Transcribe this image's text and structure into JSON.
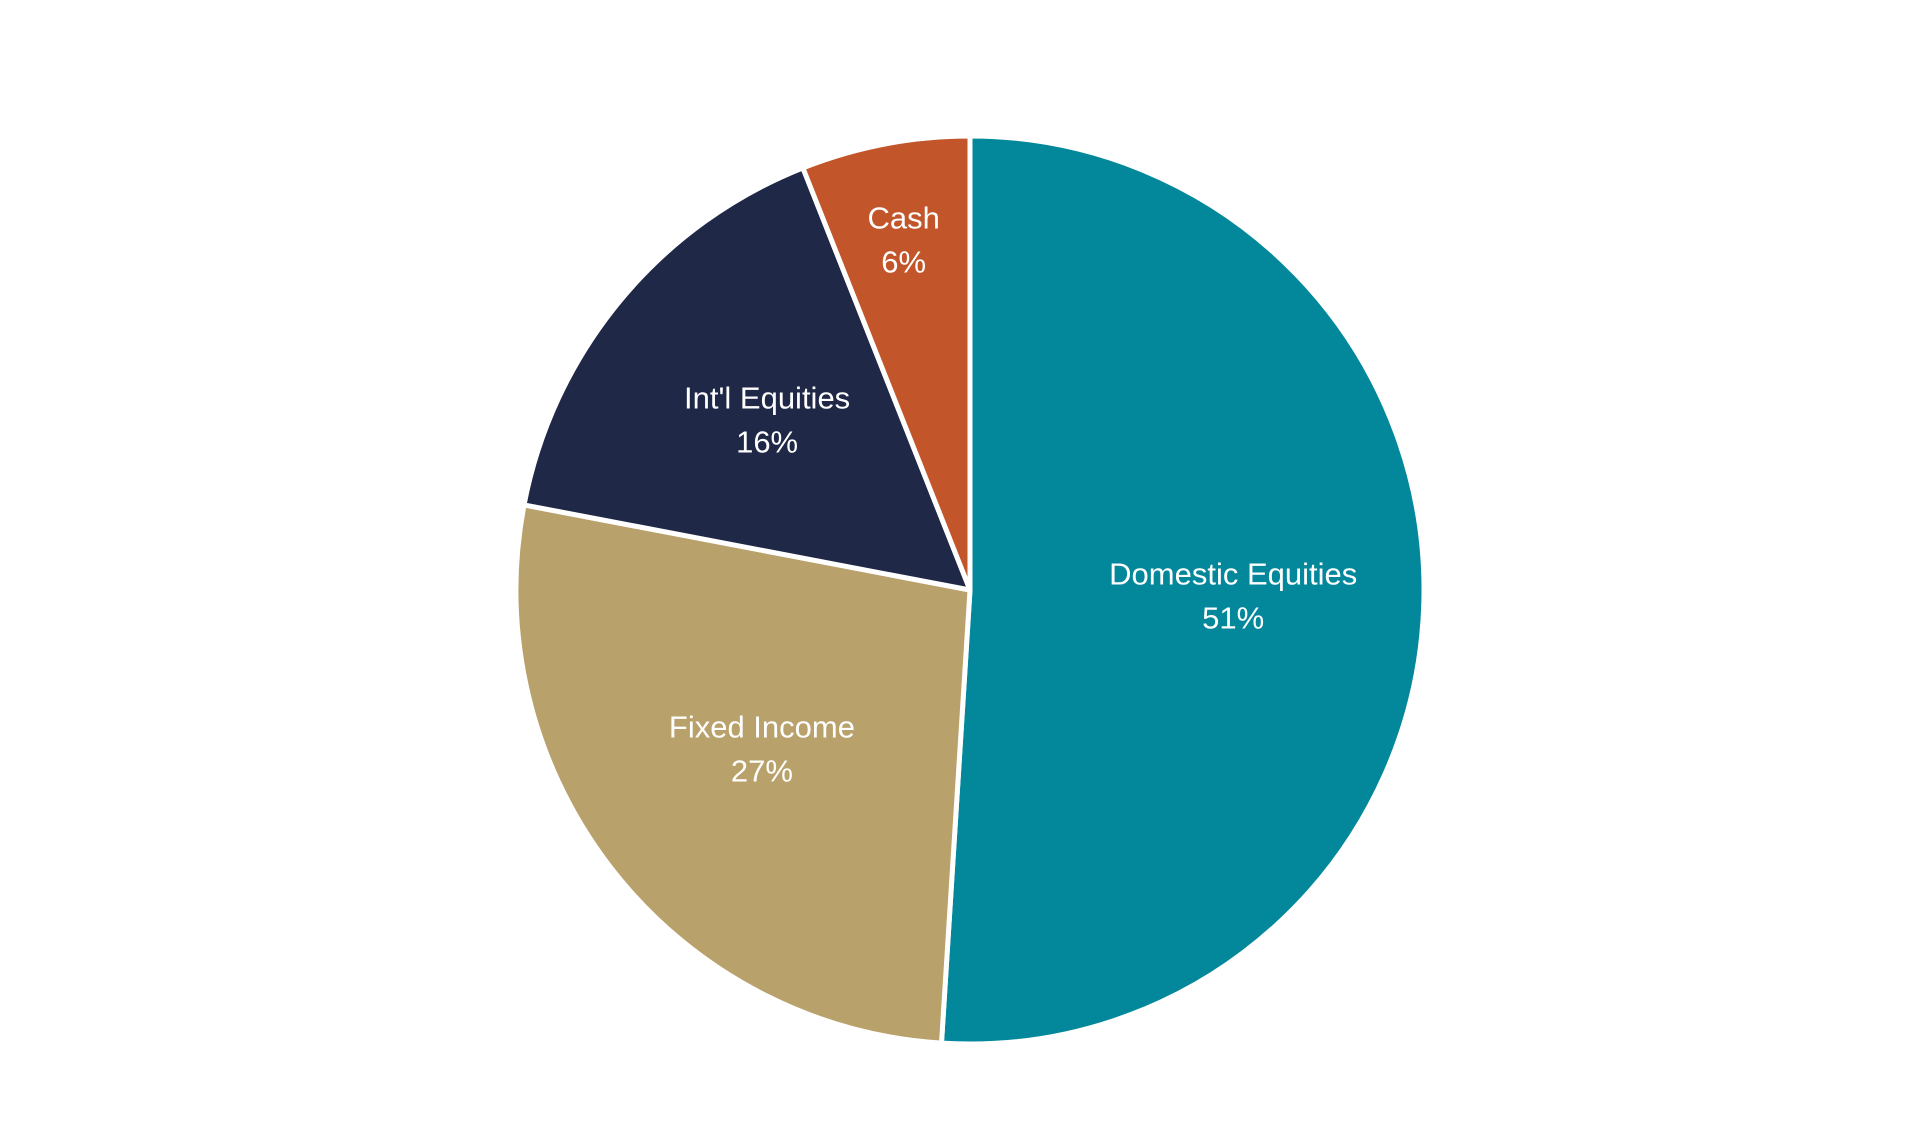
{
  "chart_data": {
    "type": "pie",
    "categories": [
      "Domestic Equities",
      "Fixed Income",
      "Int'l Equities",
      "Cash"
    ],
    "values": [
      51,
      27,
      16,
      6
    ],
    "value_labels": [
      "51%",
      "27%",
      "16%",
      "6%"
    ],
    "colors": [
      "#02879b",
      "#b9a16b",
      "#1f2847",
      "#c2562a"
    ]
  }
}
